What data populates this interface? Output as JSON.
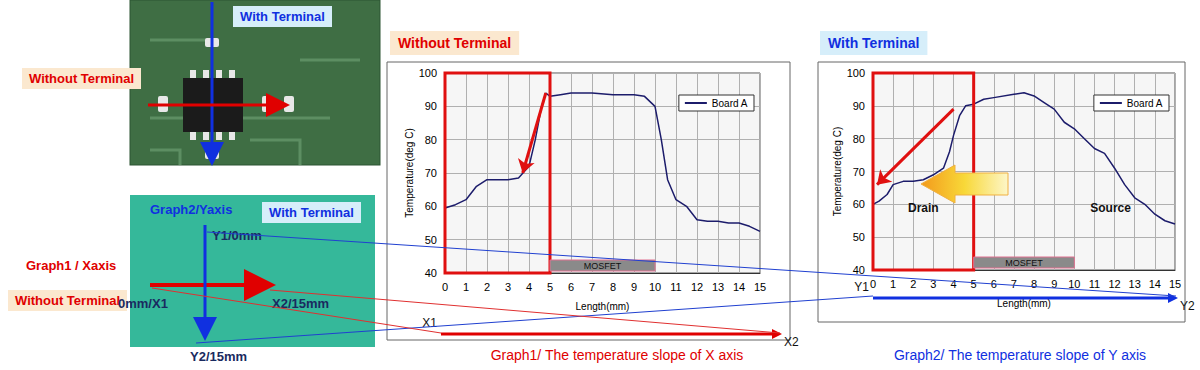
{
  "chart_data": [
    {
      "type": "line",
      "title": "Without Terminal",
      "subtitle": "Graph1/ The temperature slope of X axis",
      "x_label": "Length(mm)",
      "y_label": "Temperature(deg C)",
      "x": [
        0,
        0.5,
        1,
        1.5,
        2,
        2.5,
        3,
        3.5,
        4,
        4.3,
        4.6,
        4.8,
        5,
        5.5,
        6,
        7,
        8,
        9,
        9.5,
        10,
        10.3,
        10.6,
        11,
        11.5,
        12,
        12.5,
        13,
        13.5,
        14,
        14.5,
        15
      ],
      "series": [
        {
          "name": "Board A",
          "color": "#1c1c6b",
          "values": [
            59.5,
            60.5,
            62,
            66,
            68,
            68,
            68,
            68.5,
            72,
            80,
            90,
            94,
            93,
            93.5,
            94,
            94,
            93.5,
            93.5,
            93,
            90,
            80,
            68,
            62,
            60,
            56,
            55.5,
            55.5,
            55,
            55,
            54,
            52.5
          ]
        }
      ],
      "xlim": [
        0,
        15
      ],
      "ylim": [
        40,
        100
      ],
      "xticks": [
        0,
        1,
        2,
        3,
        4,
        5,
        6,
        7,
        8,
        9,
        10,
        11,
        12,
        13,
        14,
        15
      ],
      "yticks": [
        40,
        50,
        60,
        70,
        80,
        90,
        100
      ],
      "grid": true,
      "legend": "top-right",
      "mosfet": {
        "text": "MOSFET",
        "x": [
          5,
          10
        ]
      },
      "slope": {
        "x": [
          4.8,
          3.7
        ],
        "y": [
          94,
          70
        ]
      },
      "axis_ends": [
        "X1",
        "X2"
      ]
    },
    {
      "type": "line",
      "title": "With Terminal",
      "subtitle": "Graph2/ The temperature slope of Y axis",
      "x_label": "Length(mm)",
      "y_label": "Temperature(deg C)",
      "x": [
        0,
        0.3,
        0.7,
        1,
        1.5,
        2,
        2.5,
        3,
        3.5,
        3.8,
        4,
        4.3,
        4.6,
        5,
        5.5,
        6,
        7,
        7.5,
        8,
        8.5,
        9,
        9.5,
        10,
        10.5,
        11,
        11.5,
        12,
        12.5,
        13,
        13.5,
        14,
        14.5,
        15
      ],
      "series": [
        {
          "name": "Board A",
          "color": "#1c1c6b",
          "values": [
            60,
            61,
            63,
            66,
            67,
            67,
            67.5,
            69,
            71,
            76,
            81,
            87,
            90,
            90.5,
            92,
            92.5,
            93.5,
            94,
            93,
            91,
            89,
            85,
            83,
            80,
            77,
            75.5,
            71,
            66,
            62,
            60,
            57,
            55,
            54
          ]
        }
      ],
      "xlim": [
        0,
        15
      ],
      "ylim": [
        40,
        100
      ],
      "xticks": [
        0,
        1,
        2,
        3,
        4,
        5,
        6,
        7,
        8,
        9,
        10,
        11,
        12,
        13,
        14,
        15
      ],
      "yticks": [
        40,
        50,
        60,
        70,
        80,
        90,
        100
      ],
      "grid": true,
      "legend": "top-right",
      "mosfet": {
        "text": "MOSFET",
        "x": [
          5,
          10
        ]
      },
      "slope": {
        "x": [
          4,
          0.2
        ],
        "y": [
          89,
          66
        ]
      },
      "annotations": [
        {
          "text": "Drain",
          "x": 2.5,
          "y": 59
        },
        {
          "text": "Source",
          "x": 11.8,
          "y": 59
        }
      ],
      "axis_ends": [
        "Y1",
        "Y2"
      ]
    }
  ],
  "figure": {
    "photo": {
      "vertical": "With Terminal",
      "horizontal": "Without Terminal"
    },
    "thermal": {
      "vertical_title": "Graph2/Yaxis",
      "vertical": "With Terminal",
      "horizontal_title": "Graph1 / Xaxis",
      "horizontal": "Without Terminal",
      "y_start": "Y1/0mm",
      "y_end": "Y2/15mm",
      "x_start": "0mm/X1",
      "x_end": "X2/15mm"
    }
  }
}
